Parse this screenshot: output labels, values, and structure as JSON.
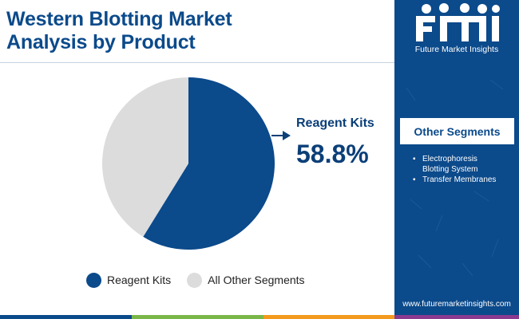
{
  "title": {
    "line1": "Western Blotting Market",
    "line2": "Analysis by Product"
  },
  "chart_data": {
    "type": "pie",
    "categories": [
      "Reagent Kits",
      "All Other Segments"
    ],
    "values": [
      58.8,
      41.2
    ],
    "colors": [
      "#0b4a8b",
      "#dcdcdc"
    ],
    "callout": {
      "label": "Reagent Kits",
      "value": "58.8%"
    },
    "legend": [
      "Reagent Kits",
      "All Other Segments"
    ],
    "legend_position": "bottom"
  },
  "sidebar": {
    "logo_text": "Future Market Insights",
    "heading": "Other Segments",
    "items": [
      "Electrophoresis Blotting System",
      "Transfer Membranes"
    ],
    "bullet": "▪",
    "url": "www.futuremarketinsights.com",
    "background": "#0b4a8b"
  },
  "footer_bar_colors": [
    "#0b4a8b",
    "#7ab648",
    "#f39a1e",
    "#8a3b8f",
    "#0b4a8b"
  ]
}
